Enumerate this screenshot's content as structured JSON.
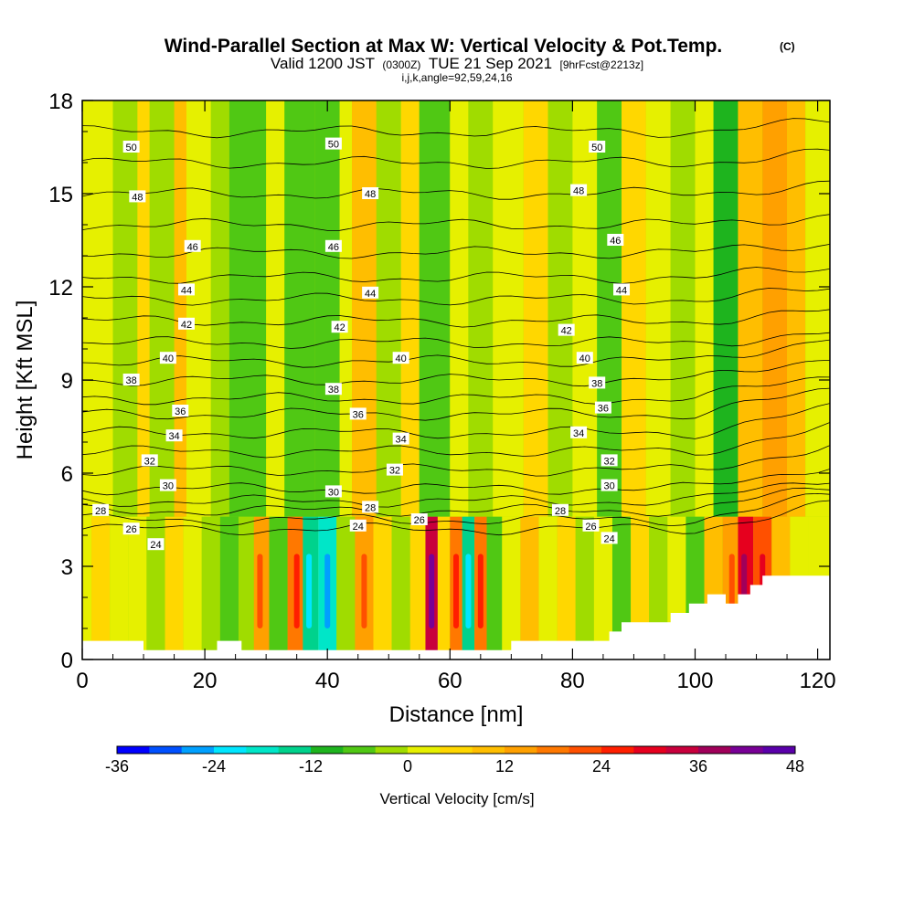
{
  "header": {
    "title": "Wind-Parallel Section at Max W: Vertical Velocity & Pot.Temp.",
    "copyright_mark": "(C)",
    "valid_prefix": "Valid 1200 JST",
    "valid_utc": "(0300Z)",
    "valid_date": "TUE 21 Sep 2021",
    "forecast": "[9hrFcst@2213z]",
    "indices": "i,j,k,angle=92,59,24,16"
  },
  "chart_data": {
    "type": "heatmap",
    "xlabel": "Distance [nm]",
    "ylabel": "Height [Kft MSL]",
    "xlim": [
      0,
      122
    ],
    "ylim": [
      0,
      18
    ],
    "x_ticks": [
      0,
      20,
      40,
      60,
      80,
      100,
      120
    ],
    "x_tick_labels": [
      "0",
      "20",
      "40",
      "60",
      "80",
      "100",
      "120"
    ],
    "y_ticks": [
      0,
      3,
      6,
      9,
      12,
      15,
      18
    ],
    "y_tick_labels": [
      "0",
      "3",
      "6",
      "9",
      "12",
      "15",
      "18"
    ],
    "colorbar": {
      "label": "Vertical Velocity [cm/s]",
      "min": -36,
      "max": 48,
      "step": 4,
      "tick_values": [
        -36,
        -24,
        -12,
        0,
        12,
        24,
        36,
        48
      ],
      "tick_labels": [
        "-36",
        "-24",
        "-12",
        "0",
        "12",
        "24",
        "36",
        "48"
      ],
      "colors": [
        "#0000ff",
        "#0050ff",
        "#00a0ff",
        "#00e6ff",
        "#00e6c8",
        "#00d28c",
        "#1eb41e",
        "#50c814",
        "#a0dc00",
        "#e6f000",
        "#ffd700",
        "#ffbe00",
        "#ffa000",
        "#ff7800",
        "#ff5000",
        "#ff1e00",
        "#e6001e",
        "#c8003c",
        "#a0005a",
        "#780096",
        "#5a00aa"
      ]
    },
    "velocity_columns": [
      {
        "x": 0,
        "w": 2
      },
      {
        "x": 3,
        "w": 6
      },
      {
        "x": 6,
        "w": 2
      },
      {
        "x": 9,
        "w": 0
      },
      {
        "x": 12,
        "w": -4
      },
      {
        "x": 15,
        "w": 5
      },
      {
        "x": 18,
        "w": 2
      },
      {
        "x": 21,
        "w": -2
      },
      {
        "x": 24,
        "w": -8
      },
      {
        "x": 27,
        "w": -2
      },
      {
        "x": 29,
        "w": 14
      },
      {
        "x": 32,
        "w": -6
      },
      {
        "x": 35,
        "w": 16
      },
      {
        "x": 37,
        "w": -14
      },
      {
        "x": 40,
        "w": -18
      },
      {
        "x": 43,
        "w": -4
      },
      {
        "x": 46,
        "w": 12
      },
      {
        "x": 49,
        "w": 4
      },
      {
        "x": 52,
        "w": -2
      },
      {
        "x": 55,
        "w": 6
      },
      {
        "x": 57,
        "w": 34
      },
      {
        "x": 59,
        "w": 4
      },
      {
        "x": 61,
        "w": 18
      },
      {
        "x": 63,
        "w": -16
      },
      {
        "x": 65,
        "w": 16
      },
      {
        "x": 67,
        "w": -8
      },
      {
        "x": 70,
        "w": 2
      },
      {
        "x": 73,
        "w": 8
      },
      {
        "x": 76,
        "w": 0
      },
      {
        "x": 79,
        "w": 4
      },
      {
        "x": 82,
        "w": -4
      },
      {
        "x": 85,
        "w": 2
      },
      {
        "x": 88,
        "w": -6
      },
      {
        "x": 91,
        "w": 4
      },
      {
        "x": 94,
        "w": -2
      },
      {
        "x": 97,
        "w": 2
      },
      {
        "x": 100,
        "w": -6
      },
      {
        "x": 103,
        "w": 8
      },
      {
        "x": 106,
        "w": 12
      },
      {
        "x": 108,
        "w": 30
      },
      {
        "x": 111,
        "w": 20
      },
      {
        "x": 114,
        "w": 8
      },
      {
        "x": 117,
        "w": 2
      },
      {
        "x": 120,
        "w": 0
      }
    ],
    "upper_bands": [
      {
        "x0": 0,
        "x1": 5,
        "w": 2
      },
      {
        "x0": 5,
        "x1": 9,
        "w": -2
      },
      {
        "x0": 9,
        "x1": 11,
        "w": 4
      },
      {
        "x0": 11,
        "x1": 15,
        "w": -2
      },
      {
        "x0": 15,
        "x1": 17,
        "w": 8
      },
      {
        "x0": 17,
        "x1": 21,
        "w": 2
      },
      {
        "x0": 21,
        "x1": 24,
        "w": -4
      },
      {
        "x0": 24,
        "x1": 30,
        "w": -6
      },
      {
        "x0": 30,
        "x1": 33,
        "w": 2
      },
      {
        "x0": 33,
        "x1": 38,
        "w": -6
      },
      {
        "x0": 38,
        "x1": 42,
        "w": -8
      },
      {
        "x0": 42,
        "x1": 44,
        "w": 2
      },
      {
        "x0": 44,
        "x1": 48,
        "w": 8
      },
      {
        "x0": 48,
        "x1": 52,
        "w": -2
      },
      {
        "x0": 52,
        "x1": 55,
        "w": 4
      },
      {
        "x0": 55,
        "x1": 60,
        "w": -6
      },
      {
        "x0": 60,
        "x1": 63,
        "w": 2
      },
      {
        "x0": 63,
        "x1": 67,
        "w": -4
      },
      {
        "x0": 67,
        "x1": 72,
        "w": 2
      },
      {
        "x0": 72,
        "x1": 76,
        "w": 6
      },
      {
        "x0": 76,
        "x1": 80,
        "w": -2
      },
      {
        "x0": 80,
        "x1": 84,
        "w": 2
      },
      {
        "x0": 84,
        "x1": 88,
        "w": -6
      },
      {
        "x0": 88,
        "x1": 92,
        "w": 4
      },
      {
        "x0": 92,
        "x1": 96,
        "w": 2
      },
      {
        "x0": 96,
        "x1": 100,
        "w": -4
      },
      {
        "x0": 100,
        "x1": 103,
        "w": 2
      },
      {
        "x0": 103,
        "x1": 107,
        "w": -10
      },
      {
        "x0": 107,
        "x1": 111,
        "w": 10
      },
      {
        "x0": 111,
        "x1": 115,
        "w": 14
      },
      {
        "x0": 115,
        "x1": 118,
        "w": 8
      },
      {
        "x0": 118,
        "x1": 122,
        "w": 2
      }
    ],
    "isentrope_heights": [
      4.2,
      4.5,
      4.8,
      5.1,
      5.5,
      6.1,
      6.7,
      7.3,
      7.9,
      8.4,
      9.0,
      9.6,
      10.2,
      10.9,
      11.6,
      12.3,
      13.1,
      14.0,
      15.0,
      16.0,
      17.0
    ],
    "isentrope_labels": [
      {
        "text": "24",
        "x": 12,
        "y": 3.7
      },
      {
        "text": "26",
        "x": 8,
        "y": 4.2
      },
      {
        "text": "28",
        "x": 3,
        "y": 4.8
      },
      {
        "text": "30",
        "x": 14,
        "y": 5.6
      },
      {
        "text": "32",
        "x": 11,
        "y": 6.4
      },
      {
        "text": "34",
        "x": 15,
        "y": 7.2
      },
      {
        "text": "36",
        "x": 16,
        "y": 8.0
      },
      {
        "text": "38",
        "x": 8,
        "y": 9.0
      },
      {
        "text": "40",
        "x": 14,
        "y": 9.7
      },
      {
        "text": "42",
        "x": 17,
        "y": 10.8
      },
      {
        "text": "44",
        "x": 17,
        "y": 11.9
      },
      {
        "text": "46",
        "x": 18,
        "y": 13.3
      },
      {
        "text": "48",
        "x": 9,
        "y": 14.9
      },
      {
        "text": "50",
        "x": 8,
        "y": 16.5
      },
      {
        "text": "24",
        "x": 45,
        "y": 4.3
      },
      {
        "text": "26",
        "x": 55,
        "y": 4.5
      },
      {
        "text": "28",
        "x": 47,
        "y": 4.9
      },
      {
        "text": "30",
        "x": 41,
        "y": 5.4
      },
      {
        "text": "32",
        "x": 51,
        "y": 6.1
      },
      {
        "text": "34",
        "x": 52,
        "y": 7.1
      },
      {
        "text": "36",
        "x": 45,
        "y": 7.9
      },
      {
        "text": "38",
        "x": 41,
        "y": 8.7
      },
      {
        "text": "40",
        "x": 52,
        "y": 9.7
      },
      {
        "text": "42",
        "x": 42,
        "y": 10.7
      },
      {
        "text": "44",
        "x": 47,
        "y": 11.8
      },
      {
        "text": "46",
        "x": 41,
        "y": 13.3
      },
      {
        "text": "48",
        "x": 47,
        "y": 15.0
      },
      {
        "text": "50",
        "x": 41,
        "y": 16.6
      },
      {
        "text": "24",
        "x": 86,
        "y": 3.9
      },
      {
        "text": "26",
        "x": 83,
        "y": 4.3
      },
      {
        "text": "28",
        "x": 78,
        "y": 4.8
      },
      {
        "text": "30",
        "x": 86,
        "y": 5.6
      },
      {
        "text": "32",
        "x": 86,
        "y": 6.4
      },
      {
        "text": "34",
        "x": 81,
        "y": 7.3
      },
      {
        "text": "36",
        "x": 85,
        "y": 8.1
      },
      {
        "text": "38",
        "x": 84,
        "y": 8.9
      },
      {
        "text": "40",
        "x": 82,
        "y": 9.7
      },
      {
        "text": "42",
        "x": 79,
        "y": 10.6
      },
      {
        "text": "44",
        "x": 88,
        "y": 11.9
      },
      {
        "text": "46",
        "x": 87,
        "y": 13.5
      },
      {
        "text": "48",
        "x": 81,
        "y": 15.1
      },
      {
        "text": "50",
        "x": 84,
        "y": 16.5
      }
    ],
    "terrain": [
      {
        "x": 0,
        "h": 0.6
      },
      {
        "x": 10,
        "h": 0.6
      },
      {
        "x": 10,
        "h": 0.3
      },
      {
        "x": 22,
        "h": 0.3
      },
      {
        "x": 22,
        "h": 0.6
      },
      {
        "x": 26,
        "h": 0.6
      },
      {
        "x": 26,
        "h": 0.3
      },
      {
        "x": 70,
        "h": 0.3
      },
      {
        "x": 70,
        "h": 0.6
      },
      {
        "x": 86,
        "h": 0.6
      },
      {
        "x": 86,
        "h": 0.9
      },
      {
        "x": 88,
        "h": 0.9
      },
      {
        "x": 88,
        "h": 1.2
      },
      {
        "x": 96,
        "h": 1.2
      },
      {
        "x": 96,
        "h": 1.5
      },
      {
        "x": 99,
        "h": 1.5
      },
      {
        "x": 99,
        "h": 1.8
      },
      {
        "x": 102,
        "h": 1.8
      },
      {
        "x": 102,
        "h": 2.1
      },
      {
        "x": 105,
        "h": 2.1
      },
      {
        "x": 105,
        "h": 1.8
      },
      {
        "x": 107,
        "h": 1.8
      },
      {
        "x": 107,
        "h": 2.1
      },
      {
        "x": 109,
        "h": 2.1
      },
      {
        "x": 109,
        "h": 2.4
      },
      {
        "x": 111,
        "h": 2.4
      },
      {
        "x": 111,
        "h": 2.7
      },
      {
        "x": 122,
        "h": 2.7
      }
    ]
  }
}
